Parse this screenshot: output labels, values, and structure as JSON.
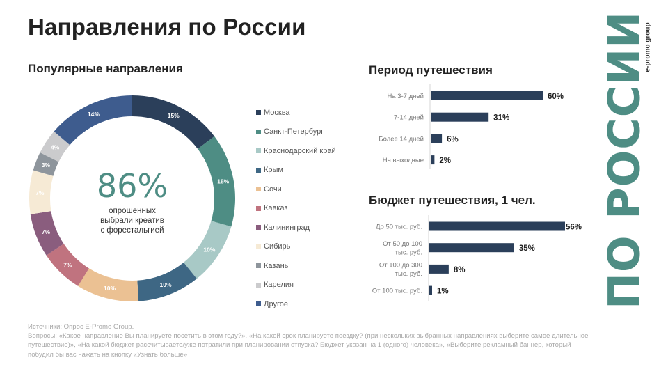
{
  "header": {
    "title": "Направления по России"
  },
  "brand": {
    "main": "ПО РОССИИ",
    "sub": "e-promo group",
    "color": "#4e8d84"
  },
  "donut_section": {
    "subtitle": "Популярные направления",
    "center_value": "86%",
    "center_caption": [
      "опрошенных",
      "выбрали креатив",
      "с форестальгией"
    ]
  },
  "period_section": {
    "subtitle": "Период путешествия"
  },
  "budget_section": {
    "subtitle": "Бюджет путешествия, 1 чел."
  },
  "footer": {
    "lines": [
      "Источники: Опрос E-Promo Group.",
      "Вопросы: «Какое направление Вы планируете посетить в этом году?», «На какой срок планируете поездку? (при нескольких выбранных направлениях выберите самое длительное путешествие)», «На какой бюджет рассчитываете/уже потратили при планировании отпуска? Бюджет указан на 1 (одного) человека», «Выберите рекламный баннер, который побудил бы вас нажать на кнопку «Узнать больше»"
    ]
  },
  "chart_data": [
    {
      "type": "pie",
      "title": "Популярные направления",
      "legend_position": "right",
      "categories": [
        "Москва",
        "Санкт-Петербург",
        "Краснодарский край",
        "Крым",
        "Сочи",
        "Кавказ",
        "Калининград",
        "Сибирь",
        "Казань",
        "Карелия",
        "Другое"
      ],
      "values": [
        15,
        15,
        10,
        10,
        10,
        7,
        7,
        7,
        3,
        4,
        14
      ],
      "labels": [
        "15%",
        "15%",
        "10%",
        "10%",
        "10%",
        "7%",
        "7%",
        "7%",
        "3%",
        "4%",
        "14%"
      ],
      "colors": [
        "#2b3f5a",
        "#4e8d84",
        "#a8c9c6",
        "#3e6784",
        "#ebc193",
        "#c0737f",
        "#8a5d7e",
        "#f6ead5",
        "#8e959c",
        "#cbcbcd",
        "#3e5c8e"
      ],
      "label_colors": [
        "#ffffff",
        "#ffffff",
        "#ffffff",
        "#ffffff",
        "#ffffff",
        "#ffffff",
        "#ffffff",
        "#ffffff",
        "#ffffff",
        "#ffffff",
        "#ffffff"
      ]
    },
    {
      "type": "bar",
      "orientation": "horizontal",
      "title": "Период путешествия",
      "categories": [
        "На 3-7 дней",
        "7-14 дней",
        "Более 14 дней",
        "На выходные"
      ],
      "values": [
        60,
        31,
        6,
        2
      ],
      "labels": [
        "60%",
        "31%",
        "6%",
        "2%"
      ],
      "color": "#2b3f5a",
      "xlim": [
        0,
        60
      ],
      "grid": false
    },
    {
      "type": "bar",
      "orientation": "horizontal",
      "title": "Бюджет путешествия, 1 чел.",
      "categories": [
        [
          "До 50 тыс. руб."
        ],
        [
          "От 50 до 100",
          "тыс. руб."
        ],
        [
          "От 100 до 300",
          "тыс. руб."
        ],
        [
          "От 100 тыс. руб."
        ]
      ],
      "values": [
        56,
        35,
        8,
        1
      ],
      "labels": [
        "56%",
        "35%",
        "8%",
        "1%"
      ],
      "color": "#2b3f5a",
      "xlim": [
        0,
        56
      ],
      "grid": false
    }
  ]
}
